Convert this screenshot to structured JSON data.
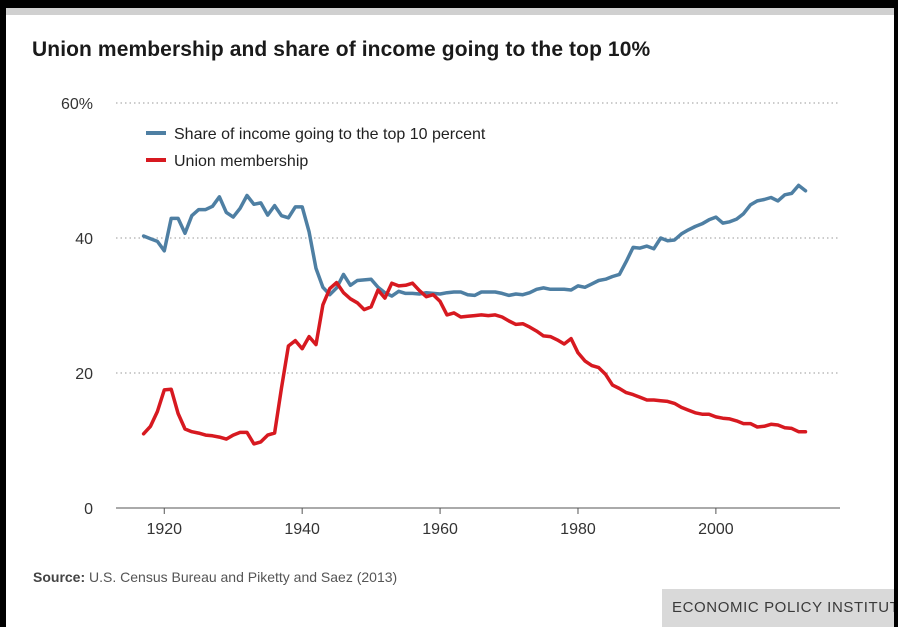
{
  "chart_data": {
    "type": "line",
    "title": "Union membership and share of income going to the top 10%",
    "xlabel": "",
    "ylabel": "",
    "xlim": [
      1913,
      2018
    ],
    "ylim": [
      0,
      60
    ],
    "x_ticks": [
      1920,
      1940,
      1960,
      1980,
      2000
    ],
    "y_ticks": [
      {
        "value": 0,
        "label": "0"
      },
      {
        "value": 20,
        "label": "20"
      },
      {
        "value": 40,
        "label": "40"
      },
      {
        "value": 60,
        "label": "60%"
      }
    ],
    "grid": "horizontal dotted",
    "legend_position": "top-left",
    "series": [
      {
        "name": "Share of income going to the top 10 percent",
        "color": "#4e7fa3",
        "x": [
          1917,
          1918,
          1919,
          1920,
          1921,
          1922,
          1923,
          1924,
          1925,
          1926,
          1927,
          1928,
          1929,
          1930,
          1931,
          1932,
          1933,
          1934,
          1935,
          1936,
          1937,
          1938,
          1939,
          1940,
          1941,
          1942,
          1943,
          1944,
          1945,
          1946,
          1947,
          1948,
          1949,
          1950,
          1951,
          1952,
          1953,
          1954,
          1955,
          1956,
          1957,
          1958,
          1959,
          1960,
          1961,
          1962,
          1963,
          1964,
          1965,
          1966,
          1967,
          1968,
          1969,
          1970,
          1971,
          1972,
          1973,
          1974,
          1975,
          1976,
          1977,
          1978,
          1979,
          1980,
          1981,
          1982,
          1983,
          1984,
          1985,
          1986,
          1987,
          1988,
          1989,
          1990,
          1991,
          1992,
          1993,
          1994,
          1995,
          1996,
          1997,
          1998,
          1999,
          2000,
          2001,
          2002,
          2003,
          2004,
          2005,
          2006,
          2007,
          2008,
          2009,
          2010,
          2011,
          2012,
          2013
        ],
        "values": [
          40.3,
          39.9,
          39.5,
          38.1,
          42.9,
          42.9,
          40.7,
          43.3,
          44.2,
          44.2,
          44.7,
          46.1,
          43.8,
          43.1,
          44.4,
          46.3,
          45.0,
          45.2,
          43.4,
          44.8,
          43.3,
          43.0,
          44.6,
          44.6,
          40.9,
          35.5,
          32.7,
          31.6,
          32.6,
          34.6,
          33.0,
          33.7,
          33.8,
          33.9,
          32.7,
          31.9,
          31.4,
          32.1,
          31.8,
          31.8,
          31.7,
          31.9,
          31.8,
          31.7,
          31.9,
          32.0,
          32.0,
          31.6,
          31.5,
          32.0,
          32.0,
          32.0,
          31.8,
          31.5,
          31.7,
          31.6,
          31.9,
          32.4,
          32.6,
          32.4,
          32.4,
          32.4,
          32.3,
          32.9,
          32.7,
          33.2,
          33.7,
          33.9,
          34.3,
          34.6,
          36.5,
          38.6,
          38.5,
          38.8,
          38.4,
          40.0,
          39.6,
          39.7,
          40.6,
          41.2,
          41.7,
          42.1,
          42.7,
          43.1,
          42.2,
          42.4,
          42.8,
          43.6,
          44.9,
          45.5,
          45.7,
          46.0,
          45.5,
          46.4,
          46.6,
          47.8,
          47.0
        ]
      },
      {
        "name": "Union membership",
        "color": "#d71920",
        "x": [
          1917,
          1918,
          1919,
          1920,
          1921,
          1922,
          1923,
          1924,
          1925,
          1926,
          1927,
          1928,
          1929,
          1930,
          1931,
          1932,
          1933,
          1934,
          1935,
          1936,
          1937,
          1938,
          1939,
          1940,
          1941,
          1942,
          1943,
          1944,
          1945,
          1946,
          1947,
          1948,
          1949,
          1950,
          1951,
          1952,
          1953,
          1954,
          1955,
          1956,
          1957,
          1958,
          1959,
          1960,
          1961,
          1962,
          1963,
          1964,
          1965,
          1966,
          1967,
          1968,
          1969,
          1970,
          1971,
          1972,
          1973,
          1974,
          1975,
          1976,
          1977,
          1978,
          1979,
          1980,
          1981,
          1982,
          1983,
          1984,
          1985,
          1986,
          1987,
          1988,
          1989,
          1990,
          1991,
          1992,
          1993,
          1994,
          1995,
          1996,
          1997,
          1998,
          1999,
          2000,
          2001,
          2002,
          2003,
          2004,
          2005,
          2006,
          2007,
          2008,
          2009,
          2010,
          2011,
          2012,
          2013
        ],
        "values": [
          11.0,
          12.1,
          14.3,
          17.5,
          17.6,
          14.0,
          11.7,
          11.3,
          11.1,
          10.8,
          10.7,
          10.5,
          10.2,
          10.8,
          11.2,
          11.2,
          9.5,
          9.8,
          10.8,
          11.1,
          17.8,
          24.0,
          24.8,
          23.6,
          25.4,
          24.2,
          30.1,
          32.5,
          33.4,
          31.9,
          31.0,
          30.4,
          29.4,
          29.8,
          32.3,
          31.1,
          33.3,
          32.9,
          33.0,
          33.3,
          32.2,
          31.3,
          31.6,
          30.6,
          28.6,
          28.9,
          28.3,
          28.4,
          28.5,
          28.6,
          28.5,
          28.6,
          28.3,
          27.7,
          27.2,
          27.3,
          26.8,
          26.2,
          25.5,
          25.4,
          24.9,
          24.3,
          25.1,
          23.0,
          21.8,
          21.1,
          20.8,
          19.8,
          18.2,
          17.7,
          17.1,
          16.8,
          16.4,
          16.0,
          16.0,
          15.9,
          15.8,
          15.5,
          14.9,
          14.5,
          14.1,
          13.9,
          13.9,
          13.5,
          13.3,
          13.2,
          12.9,
          12.5,
          12.5,
          12.0,
          12.1,
          12.4,
          12.3,
          11.9,
          11.8,
          11.3,
          11.3
        ]
      }
    ]
  },
  "source": {
    "label": "Source:",
    "text": "U.S. Census Bureau and Piketty and Saez (2013)"
  },
  "brand": "ECONOMIC POLICY INSTITUTE"
}
